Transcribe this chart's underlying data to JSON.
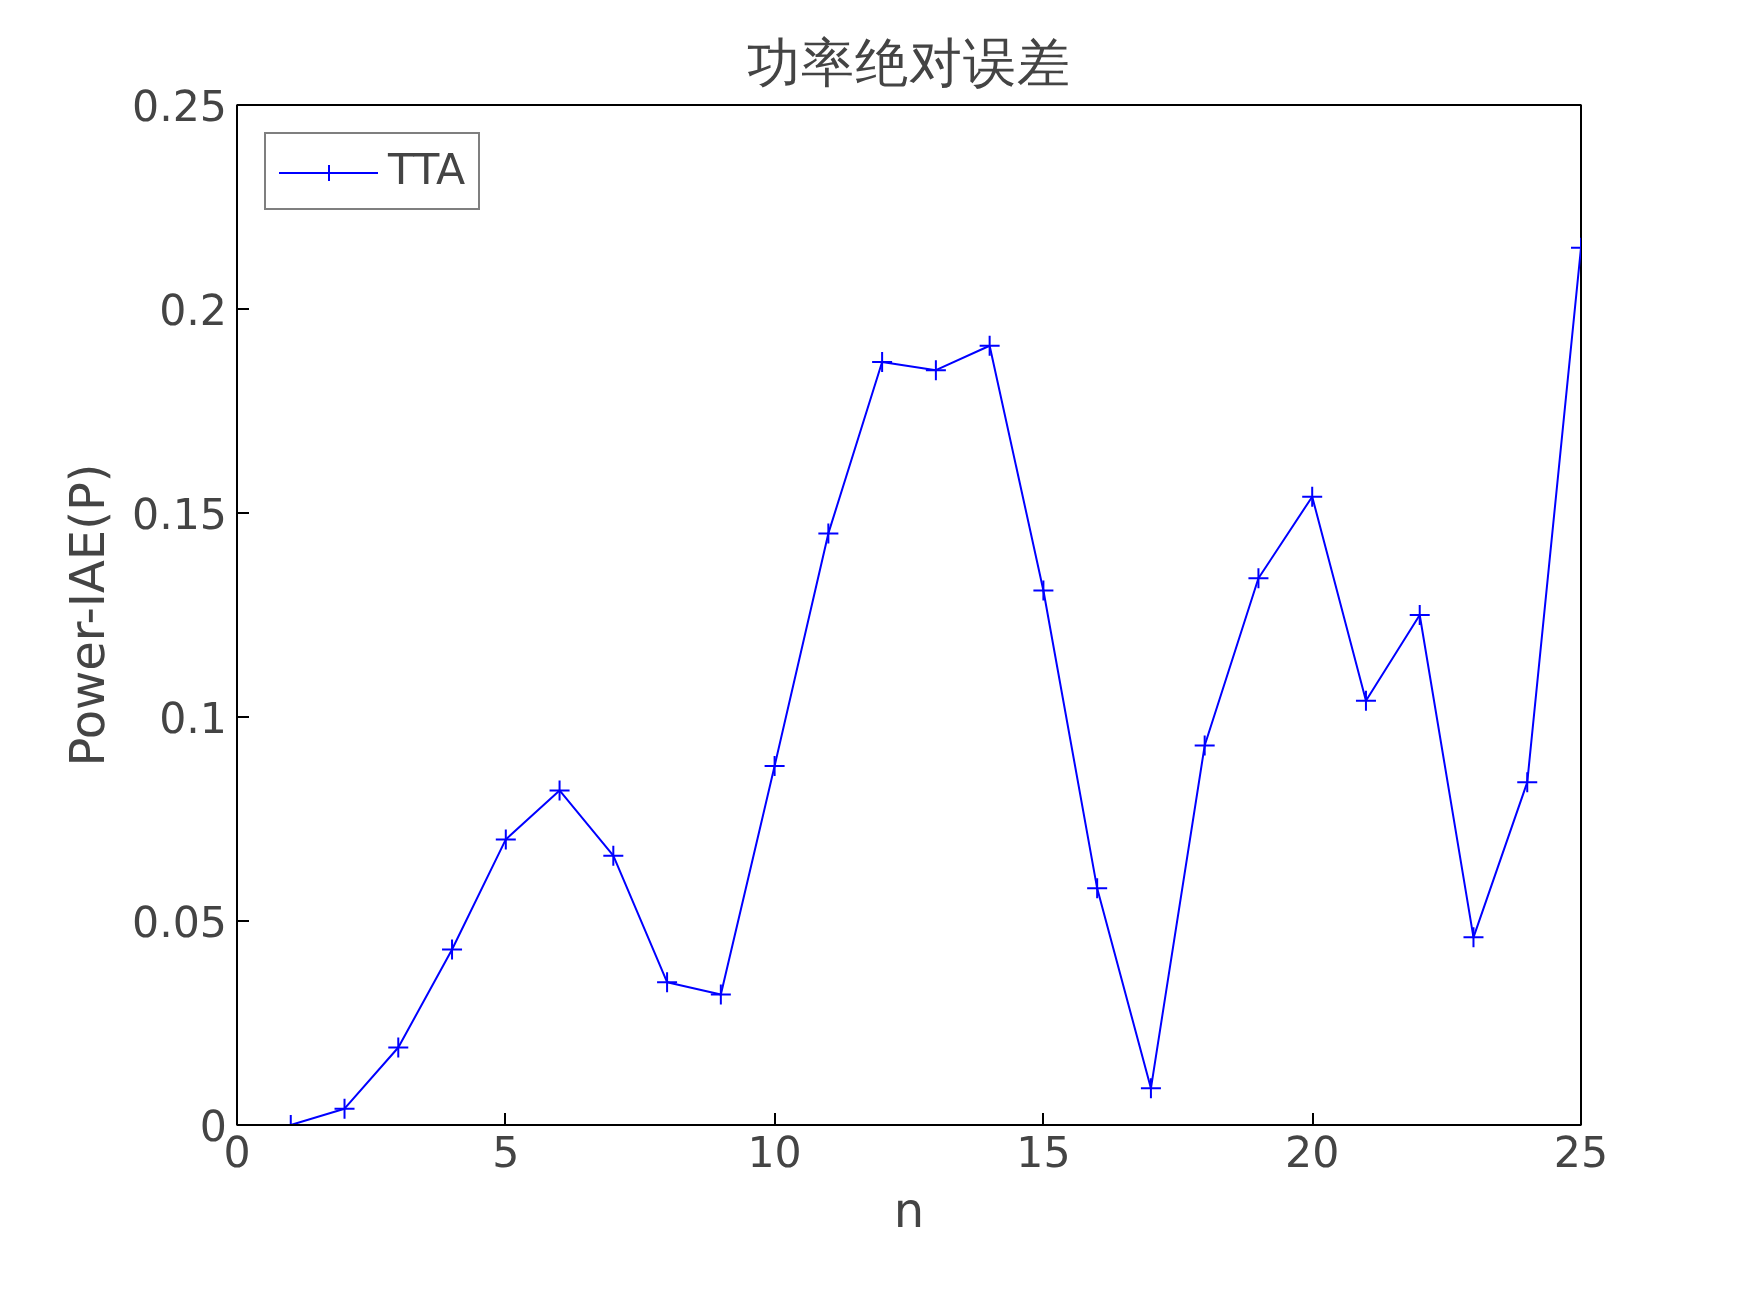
{
  "chart_data": {
    "type": "line",
    "title": "功率绝对误差",
    "xlabel": "n",
    "ylabel": "Power-IAE(P)",
    "x": [
      1,
      2,
      3,
      4,
      5,
      6,
      7,
      8,
      9,
      10,
      11,
      12,
      13,
      14,
      15,
      16,
      17,
      18,
      19,
      20,
      21,
      22,
      23,
      24,
      25
    ],
    "series": [
      {
        "name": "TTA",
        "color": "#0000ff",
        "values": [
          0,
          0.004,
          0.019,
          0.043,
          0.07,
          0.082,
          0.066,
          0.035,
          0.032,
          0.088,
          0.145,
          0.187,
          0.185,
          0.191,
          0.131,
          0.058,
          0.009,
          0.093,
          0.134,
          0.154,
          0.104,
          0.125,
          0.046,
          0.084,
          0.215
        ]
      }
    ],
    "xlim": [
      0,
      25
    ],
    "xticks": [
      0,
      5,
      10,
      15,
      20,
      25
    ],
    "ylim": [
      0,
      0.25
    ],
    "yticks": [
      0,
      0.05,
      0.1,
      0.15,
      0.2,
      0.25
    ],
    "grid": false,
    "legend": "top left",
    "marker": "cross",
    "line_style": "solid"
  }
}
